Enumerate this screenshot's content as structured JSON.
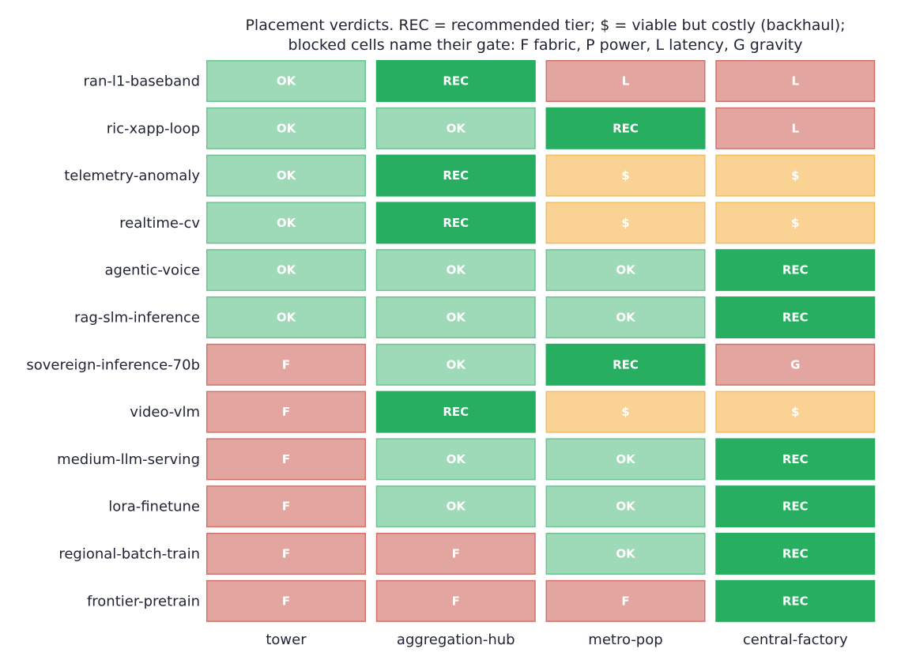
{
  "chart_data": {
    "type": "heatmap",
    "title": [
      "Placement verdicts. REC = recommended tier; $ = viable but costly (backhaul);",
      "blocked cells name their gate: F fabric, P power, L latency, G gravity"
    ],
    "columns": [
      "tower",
      "aggregation-hub",
      "metro-pop",
      "central-factory"
    ],
    "rows": [
      {
        "name": "ran-l1-baseband",
        "cells": [
          "OK",
          "REC",
          "L",
          "L"
        ]
      },
      {
        "name": "ric-xapp-loop",
        "cells": [
          "OK",
          "OK",
          "REC",
          "L"
        ]
      },
      {
        "name": "telemetry-anomaly",
        "cells": [
          "OK",
          "REC",
          "$",
          "$"
        ]
      },
      {
        "name": "realtime-cv",
        "cells": [
          "OK",
          "REC",
          "$",
          "$"
        ]
      },
      {
        "name": "agentic-voice",
        "cells": [
          "OK",
          "OK",
          "OK",
          "REC"
        ]
      },
      {
        "name": "rag-slm-inference",
        "cells": [
          "OK",
          "OK",
          "OK",
          "REC"
        ]
      },
      {
        "name": "sovereign-inference-70b",
        "cells": [
          "F",
          "OK",
          "REC",
          "G"
        ]
      },
      {
        "name": "video-vlm",
        "cells": [
          "F",
          "REC",
          "$",
          "$"
        ]
      },
      {
        "name": "medium-llm-serving",
        "cells": [
          "F",
          "OK",
          "OK",
          "REC"
        ]
      },
      {
        "name": "lora-finetune",
        "cells": [
          "F",
          "OK",
          "OK",
          "REC"
        ]
      },
      {
        "name": "regional-batch-train",
        "cells": [
          "F",
          "F",
          "OK",
          "REC"
        ]
      },
      {
        "name": "frontier-pretrain",
        "cells": [
          "F",
          "F",
          "F",
          "REC"
        ]
      }
    ],
    "colors": {
      "OK": {
        "fill": "#9ed9b8",
        "stroke": "#6cc495"
      },
      "REC": {
        "fill": "#27ae60",
        "stroke": "#27ae60"
      },
      "$": {
        "fill": "#f9d294",
        "stroke": "#f2bd5c"
      },
      "F": {
        "fill": "#e3a5a0",
        "stroke": "#d0726b"
      },
      "L": {
        "fill": "#e3a5a0",
        "stroke": "#d0726b"
      },
      "G": {
        "fill": "#e3a5a0",
        "stroke": "#d0726b"
      },
      "P": {
        "fill": "#e3a5a0",
        "stroke": "#d0726b"
      }
    }
  }
}
